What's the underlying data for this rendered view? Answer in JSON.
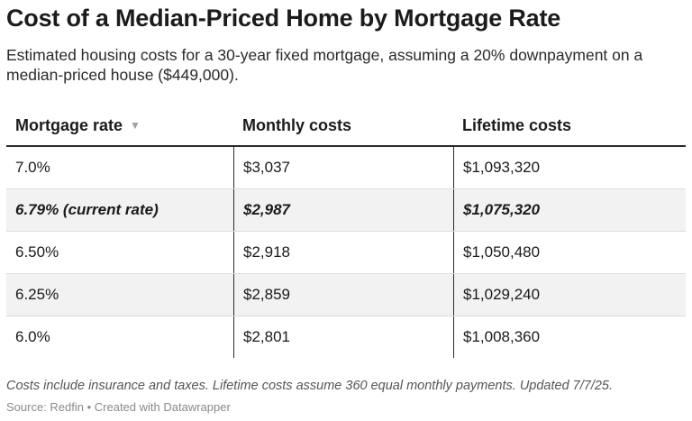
{
  "title": "Cost of a Median-Priced Home by Mortgage Rate",
  "subtitle": "Estimated housing costs for a 30-year fixed mortgage, assuming a 20% downpayment on a median-priced house ($449,000).",
  "chart_data": {
    "type": "table",
    "title": "Cost of a Median-Priced Home by Mortgage Rate",
    "columns": [
      "Mortgage rate",
      "Monthly costs",
      "Lifetime costs"
    ],
    "sort_icon": "sort-down-icon",
    "rows": [
      {
        "rate": "7.0%",
        "monthly": "$3,037",
        "lifetime": "$1,093,320",
        "highlight": false
      },
      {
        "rate": "6.79% (current rate)",
        "monthly": "$2,987",
        "lifetime": "$1,075,320",
        "highlight": true
      },
      {
        "rate": "6.50%",
        "monthly": "$2,918",
        "lifetime": "$1,050,480",
        "highlight": false
      },
      {
        "rate": "6.25%",
        "monthly": "$2,859",
        "lifetime": "$1,029,240",
        "highlight": false
      },
      {
        "rate": "6.0%",
        "monthly": "$2,801",
        "lifetime": "$1,008,360",
        "highlight": false
      }
    ],
    "values": {
      "rate_pct": [
        7.0,
        6.79,
        6.5,
        6.25,
        6.0
      ],
      "monthly_usd": [
        3037,
        2987,
        2918,
        2859,
        2801
      ],
      "lifetime_usd": [
        1093320,
        1075320,
        1050480,
        1029240,
        1008360
      ]
    }
  },
  "notes": "Costs include insurance and taxes. Lifetime costs assume 360 equal monthly payments. Updated 7/7/25.",
  "source": "Source: Redfin • Created with Datawrapper",
  "colors": {
    "text": "#1b1b1b",
    "row_shade": "#f2f2f2",
    "muted": "#8a8a8a"
  }
}
